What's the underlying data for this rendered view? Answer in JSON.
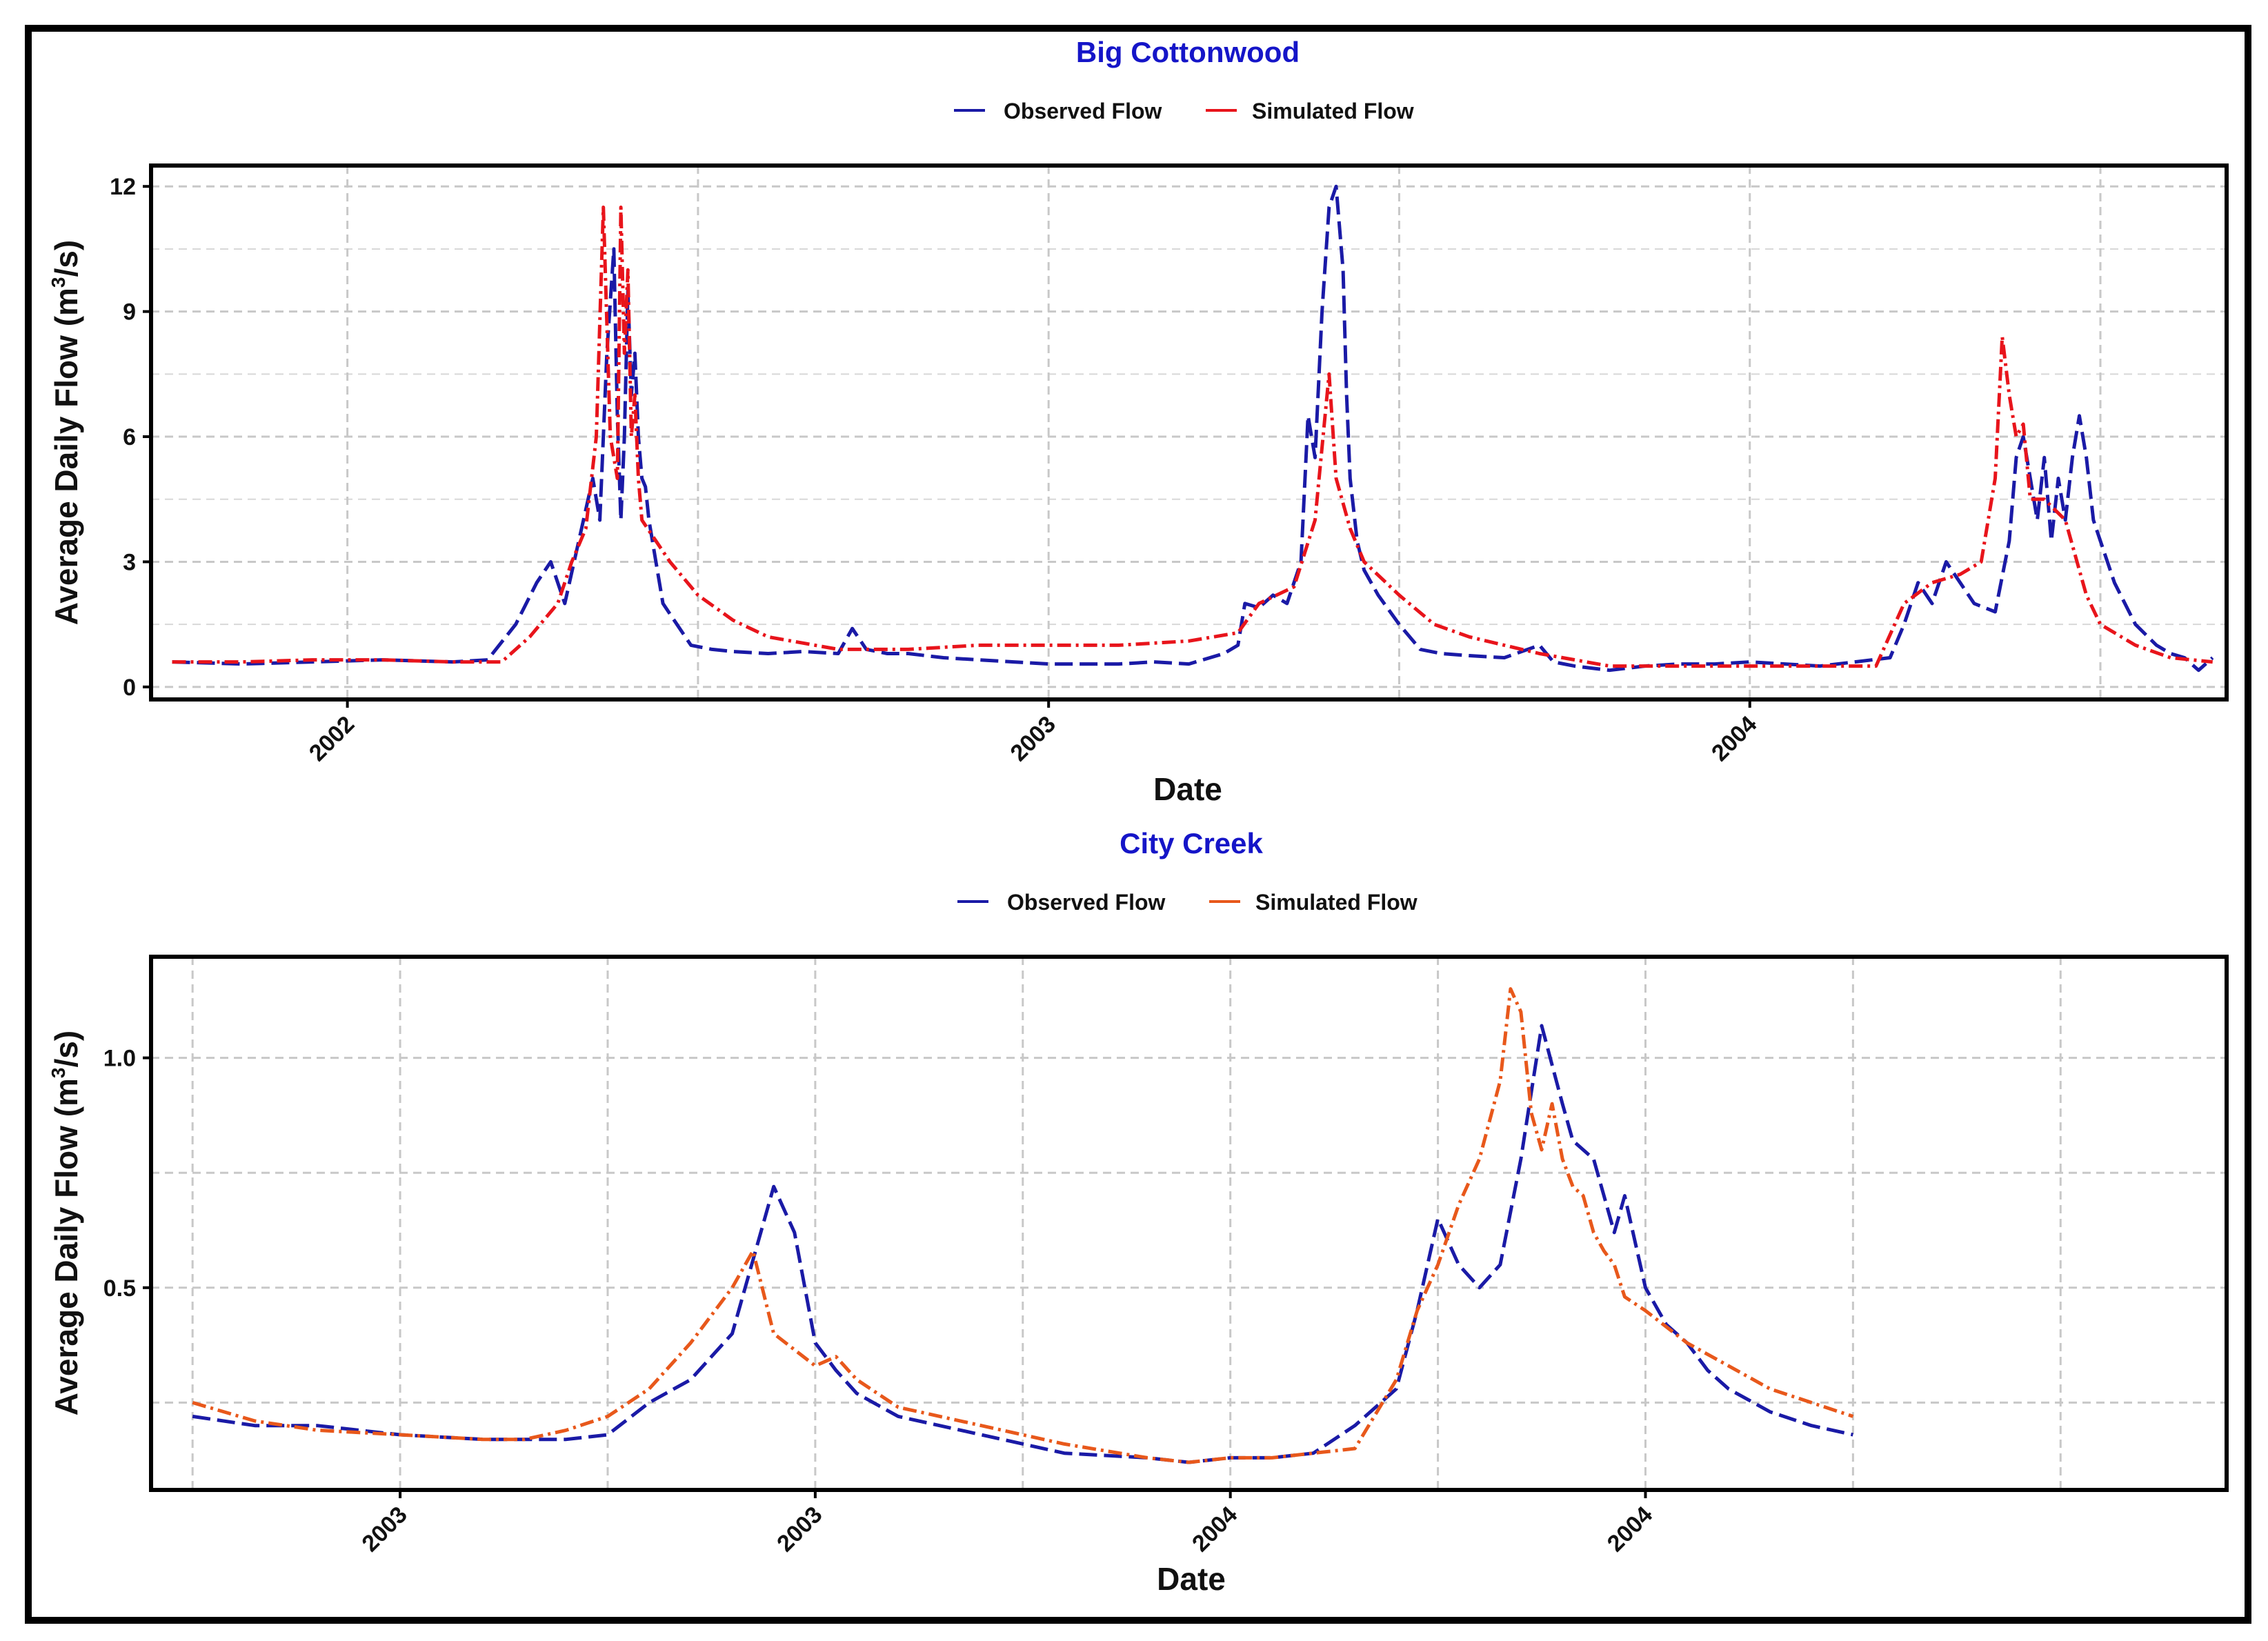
{
  "chart_data": [
    {
      "type": "line",
      "title": "Big Cottonwood",
      "xlabel": "Date",
      "ylabel": "Average Daily Flow (m³/s)",
      "ylabel_main": "Average Daily Flow (m",
      "ylabel_sup": "3",
      "ylabel_end": "/s)",
      "ylim": [
        -0.3,
        12.5
      ],
      "yticks": [
        0,
        3,
        6,
        9,
        12
      ],
      "xlim": [
        2001.72,
        2004.68
      ],
      "xticks": [
        {
          "v": 2002.0,
          "label": "2002"
        },
        {
          "v": 2003.0,
          "label": "2003"
        },
        {
          "v": 2004.0,
          "label": "2004"
        }
      ],
      "xgrid": [
        2002.0,
        2002.5,
        2003.0,
        2003.5,
        2004.0,
        2004.5
      ],
      "legend_position": "top",
      "series": [
        {
          "name": "Observed Flow",
          "color": "#1a1aa6",
          "dash": "26,10",
          "x": [
            2001.75,
            2001.85,
            2001.95,
            2002.05,
            2002.15,
            2002.2,
            2002.24,
            2002.27,
            2002.29,
            2002.31,
            2002.33,
            2002.35,
            2002.36,
            2002.37,
            2002.38,
            2002.385,
            2002.39,
            2002.395,
            2002.4,
            2002.405,
            2002.41,
            2002.415,
            2002.42,
            2002.425,
            2002.43,
            2002.44,
            2002.45,
            2002.47,
            2002.49,
            2002.52,
            2002.55,
            2002.6,
            2002.65,
            2002.7,
            2002.72,
            2002.74,
            2002.77,
            2002.8,
            2002.85,
            2002.9,
            2002.95,
            2003.0,
            2003.05,
            2003.1,
            2003.15,
            2003.2,
            2003.25,
            2003.27,
            2003.28,
            2003.3,
            2003.32,
            2003.34,
            2003.36,
            2003.37,
            2003.38,
            2003.39,
            2003.4,
            2003.41,
            2003.42,
            2003.425,
            2003.43,
            2003.44,
            2003.45,
            2003.47,
            2003.5,
            2003.53,
            2003.56,
            2003.6,
            2003.65,
            2003.7,
            2003.72,
            2003.75,
            2003.8,
            2003.85,
            2003.9,
            2003.95,
            2004.0,
            2004.05,
            2004.1,
            2004.15,
            2004.2,
            2004.22,
            2004.24,
            2004.26,
            2004.28,
            2004.3,
            2004.32,
            2004.35,
            2004.37,
            2004.38,
            2004.39,
            2004.4,
            2004.41,
            2004.42,
            2004.43,
            2004.44,
            2004.45,
            2004.46,
            2004.47,
            2004.48,
            2004.49,
            2004.5,
            2004.52,
            2004.55,
            2004.58,
            2004.6,
            2004.62,
            2004.64,
            2004.66
          ],
          "y": [
            0.6,
            0.55,
            0.6,
            0.65,
            0.6,
            0.65,
            1.5,
            2.5,
            3.0,
            2.0,
            3.5,
            5.0,
            4.0,
            8.0,
            10.5,
            6.5,
            4.0,
            6.0,
            9.5,
            7.0,
            8.0,
            6.0,
            5.0,
            4.8,
            4.0,
            3.0,
            2.0,
            1.5,
            1.0,
            0.9,
            0.85,
            0.8,
            0.85,
            0.8,
            1.4,
            0.9,
            0.8,
            0.8,
            0.7,
            0.65,
            0.6,
            0.55,
            0.55,
            0.55,
            0.6,
            0.55,
            0.8,
            1.0,
            2.0,
            1.9,
            2.2,
            2.0,
            3.0,
            6.5,
            5.5,
            9.0,
            11.5,
            12.0,
            10.0,
            7.0,
            5.0,
            3.5,
            2.8,
            2.2,
            1.5,
            0.9,
            0.8,
            0.75,
            0.7,
            1.0,
            0.6,
            0.5,
            0.4,
            0.5,
            0.55,
            0.55,
            0.6,
            0.55,
            0.5,
            0.6,
            0.7,
            1.5,
            2.5,
            2.0,
            3.0,
            2.5,
            2.0,
            1.8,
            3.5,
            5.5,
            6.0,
            5.0,
            4.0,
            5.5,
            3.5,
            5.0,
            4.0,
            5.5,
            6.5,
            5.5,
            4.0,
            3.5,
            2.5,
            1.5,
            1.0,
            0.8,
            0.7,
            0.4,
            0.7
          ]
        },
        {
          "name": "Simulated Flow",
          "color": "#e8141b",
          "dash": "20,7,4,7",
          "x": [
            2001.75,
            2001.85,
            2001.95,
            2002.05,
            2002.15,
            2002.22,
            2002.26,
            2002.3,
            2002.32,
            2002.34,
            2002.355,
            2002.365,
            2002.375,
            2002.385,
            2002.39,
            2002.395,
            2002.4,
            2002.405,
            2002.41,
            2002.415,
            2002.42,
            2002.44,
            2002.46,
            2002.5,
            2002.55,
            2002.6,
            2002.7,
            2002.8,
            2002.9,
            2003.0,
            2003.1,
            2003.2,
            2003.27,
            2003.3,
            2003.35,
            2003.38,
            2003.4,
            2003.41,
            2003.43,
            2003.45,
            2003.5,
            2003.55,
            2003.6,
            2003.7,
            2003.8,
            2003.9,
            2004.0,
            2004.1,
            2004.18,
            2004.22,
            2004.26,
            2004.3,
            2004.33,
            2004.35,
            2004.36,
            2004.37,
            2004.38,
            2004.39,
            2004.4,
            2004.42,
            2004.45,
            2004.48,
            2004.5,
            2004.55,
            2004.6,
            2004.66
          ],
          "y": [
            0.6,
            0.6,
            0.65,
            0.65,
            0.6,
            0.6,
            1.2,
            2.0,
            3.0,
            3.8,
            6.0,
            11.5,
            6.0,
            5.0,
            11.5,
            8.0,
            10.0,
            6.0,
            7.0,
            5.0,
            4.0,
            3.5,
            3.0,
            2.2,
            1.6,
            1.2,
            0.9,
            0.9,
            1.0,
            1.0,
            1.0,
            1.1,
            1.3,
            2.0,
            2.4,
            4.0,
            7.5,
            5.0,
            3.8,
            3.0,
            2.2,
            1.5,
            1.2,
            0.8,
            0.5,
            0.5,
            0.5,
            0.5,
            0.5,
            2.0,
            2.5,
            2.7,
            3.0,
            5.0,
            8.4,
            7.0,
            6.0,
            6.3,
            4.5,
            4.5,
            4.0,
            2.2,
            1.5,
            1.0,
            0.7,
            0.6
          ]
        }
      ]
    },
    {
      "type": "line",
      "title": "City Creek",
      "xlabel": "Date",
      "ylabel": "Average Daily Flow (m³/s)",
      "ylabel_main": "Average Daily Flow (m",
      "ylabel_sup": "3",
      "ylabel_end": "/s)",
      "ylim": [
        0.06,
        1.22
      ],
      "yticks": [
        0.5,
        1.0
      ],
      "ygrid": [
        0.25,
        0.5,
        0.75,
        1.0
      ],
      "xlim": [
        0,
        100
      ],
      "xticks": [
        {
          "v": 12,
          "label": "2003"
        },
        {
          "v": 32,
          "label": "2003"
        },
        {
          "v": 52,
          "label": "2004"
        },
        {
          "v": 72,
          "label": "2004"
        }
      ],
      "xgrid": [
        2,
        12,
        22,
        32,
        42,
        52,
        62,
        72,
        82,
        92
      ],
      "legend_position": "top",
      "series": [
        {
          "name": "Observed Flow",
          "color": "#1a1aa6",
          "dash": "26,10",
          "x": [
            2,
            5,
            8,
            12,
            16,
            20,
            22,
            24,
            26,
            28,
            30,
            31,
            32,
            33,
            34,
            36,
            40,
            44,
            48,
            50,
            52,
            54,
            56,
            58,
            60,
            61,
            62,
            63,
            64,
            65,
            66,
            67,
            68,
            68.5,
            69,
            69.5,
            70,
            70.5,
            71,
            71.5,
            72,
            73,
            74,
            75,
            76,
            78,
            80,
            82
          ],
          "y": [
            0.22,
            0.2,
            0.2,
            0.18,
            0.17,
            0.17,
            0.18,
            0.25,
            0.3,
            0.4,
            0.72,
            0.62,
            0.38,
            0.32,
            0.27,
            0.22,
            0.18,
            0.14,
            0.13,
            0.12,
            0.13,
            0.13,
            0.14,
            0.2,
            0.28,
            0.45,
            0.65,
            0.55,
            0.5,
            0.55,
            0.78,
            1.07,
            0.9,
            0.82,
            0.8,
            0.78,
            0.7,
            0.62,
            0.7,
            0.6,
            0.5,
            0.42,
            0.38,
            0.32,
            0.28,
            0.23,
            0.2,
            0.18
          ]
        },
        {
          "name": "Simulated Flow",
          "color": "#e8581b",
          "dash": "20,7,4,7",
          "x": [
            2,
            5,
            8,
            12,
            16,
            18,
            20,
            22,
            24,
            26,
            28,
            29,
            30,
            32,
            33,
            34,
            36,
            40,
            44,
            48,
            50,
            52,
            54,
            56,
            58,
            60,
            61,
            62,
            63,
            64,
            65,
            65.5,
            66,
            66.5,
            67,
            67.5,
            68,
            68.5,
            69,
            69.5,
            70,
            70.5,
            71,
            72,
            74,
            76,
            78,
            80,
            82
          ],
          "y": [
            0.25,
            0.21,
            0.19,
            0.18,
            0.17,
            0.17,
            0.19,
            0.22,
            0.28,
            0.38,
            0.5,
            0.58,
            0.4,
            0.33,
            0.35,
            0.3,
            0.24,
            0.2,
            0.16,
            0.13,
            0.12,
            0.13,
            0.13,
            0.14,
            0.15,
            0.3,
            0.45,
            0.55,
            0.68,
            0.78,
            0.95,
            1.15,
            1.1,
            0.88,
            0.8,
            0.9,
            0.78,
            0.72,
            0.7,
            0.62,
            0.58,
            0.55,
            0.48,
            0.45,
            0.38,
            0.33,
            0.28,
            0.25,
            0.22
          ]
        }
      ]
    }
  ]
}
